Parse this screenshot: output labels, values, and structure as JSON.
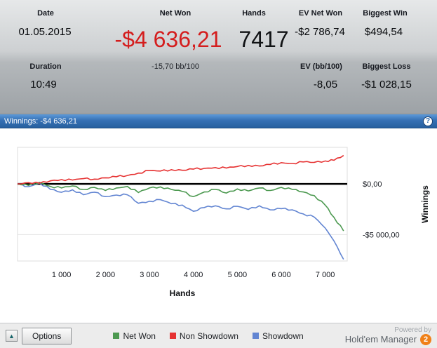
{
  "stats": {
    "date_label": "Date",
    "date_value": "01.05.2015",
    "net_won_label": "Net Won",
    "net_won_value": "-$4 636,21",
    "net_won_sub": "-15,70 bb/100",
    "hands_label": "Hands",
    "hands_value": "7417",
    "ev_net_won_label": "EV Net Won",
    "ev_net_won_value": "-$2 786,74",
    "biggest_win_label": "Biggest Win",
    "biggest_win_value": "$494,54",
    "duration_label": "Duration",
    "duration_value": "10:49",
    "ev_bb_label": "EV (bb/100)",
    "ev_bb_value": "-8,05",
    "biggest_loss_label": "Biggest Loss",
    "biggest_loss_value": "-$1 028,15"
  },
  "titlebar": {
    "text": "Winnings: -$4 636,21",
    "help_icon": "?"
  },
  "chart_data": {
    "type": "line",
    "title": "Winnings: -$4 636,21",
    "xlabel": "Hands",
    "ylabel": "Winnings",
    "xlim": [
      0,
      7500
    ],
    "ylim": [
      -7600,
      3600
    ],
    "grid": false,
    "zero_line": true,
    "legend_position": "bottom",
    "x": [
      0,
      250,
      500,
      750,
      1000,
      1250,
      1500,
      1750,
      2000,
      2250,
      2500,
      2750,
      3000,
      3250,
      3500,
      3750,
      4000,
      4250,
      4500,
      4750,
      5000,
      5250,
      5500,
      5750,
      6000,
      6250,
      6500,
      6750,
      7000,
      7200,
      7417
    ],
    "series": [
      {
        "name": "Net Won",
        "color": "#4c9950",
        "values": [
          0,
          -150,
          150,
          -250,
          -400,
          -200,
          -550,
          -350,
          -650,
          -400,
          -250,
          -850,
          -400,
          -300,
          -550,
          -750,
          -1250,
          -800,
          -550,
          -900,
          -500,
          -700,
          -400,
          -650,
          -350,
          -550,
          -800,
          -1150,
          -2100,
          -3300,
          -4636
        ]
      },
      {
        "name": "Non Showdown",
        "color": "#e63232",
        "values": [
          0,
          120,
          60,
          300,
          430,
          380,
          520,
          470,
          600,
          700,
          830,
          1060,
          1310,
          1260,
          1400,
          1340,
          1450,
          1530,
          1610,
          1560,
          1710,
          1820,
          1760,
          1910,
          2090,
          2010,
          2160,
          2120,
          2260,
          2330,
          2800
        ]
      },
      {
        "name": "Showdown",
        "color": "#6285d2",
        "values": [
          0,
          -270,
          90,
          -550,
          -830,
          -580,
          -1070,
          -820,
          -1250,
          -1100,
          -1080,
          -1910,
          -1710,
          -1560,
          -1950,
          -2090,
          -2700,
          -2330,
          -2160,
          -2460,
          -2210,
          -2520,
          -2160,
          -2560,
          -2440,
          -2560,
          -2960,
          -3270,
          -4360,
          -5630,
          -7436
        ]
      }
    ],
    "xticks": [
      {
        "v": 1000,
        "label": "1 000"
      },
      {
        "v": 2000,
        "label": "2 000"
      },
      {
        "v": 3000,
        "label": "3 000"
      },
      {
        "v": 4000,
        "label": "4 000"
      },
      {
        "v": 5000,
        "label": "5 000"
      },
      {
        "v": 6000,
        "label": "6 000"
      },
      {
        "v": 7000,
        "label": "7 000"
      }
    ],
    "yticks": [
      {
        "v": 0,
        "label": "$0,00"
      },
      {
        "v": -5000,
        "label": "-$5 000,00"
      }
    ]
  },
  "footer": {
    "expand_icon": "▲",
    "options_label": "Options",
    "powered_by": "Powered by",
    "brand_name": "Hold'em Manager",
    "brand_number": "2"
  }
}
